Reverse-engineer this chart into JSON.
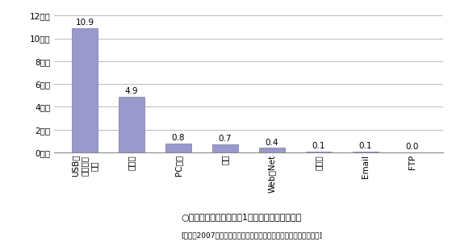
{
  "categories": [
    "USB等\n可搬記録\n媒体",
    "紙媒体",
    "PC本体",
    "不明",
    "Web・Net",
    "その他",
    "Email",
    "FTP"
  ],
  "values": [
    10.9,
    4.9,
    0.8,
    0.7,
    0.4,
    0.1,
    0.1,
    0.0
  ],
  "bar_color": "#9999cc",
  "bar_edge_color": "#7777aa",
  "ytick_labels": [
    "0万人",
    "2万人",
    "4万人",
    "6万人",
    "8万人",
    "10万人",
    "12万人"
  ],
  "ytick_values": [
    0,
    2,
    4,
    6,
    8,
    10,
    12
  ],
  "ylim": [
    0,
    12.5
  ],
  "chart_title": "○漏えい媒体・経路別の1件あたりの漏えい人数",
  "footnote": "[出展：2007年度情報セキュリティインシデントに関する調査報告]",
  "background_color": "#ffffff",
  "grid_color": "#bbbbbb",
  "label_fontsize": 7.5,
  "annotation_fontsize": 7.5,
  "title_fontsize": 8.0,
  "footnote_fontsize": 6.5
}
